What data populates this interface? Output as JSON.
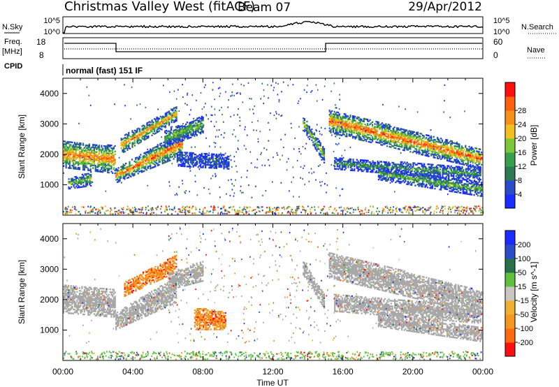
{
  "header": {
    "station": "Christmas Valley West (fitACF)",
    "beam": "Beam 07",
    "date": "29/Apr/2012"
  },
  "strips": {
    "nsky": {
      "left_label": "N.Sky",
      "left_ticks": [
        "10^5",
        "10^0"
      ],
      "right_label": "N.Search",
      "right_ticks": [
        "10^5",
        "10^0"
      ]
    },
    "freq": {
      "left_label_1": "Freq.",
      "left_label_2": "[MHz]",
      "left_ticks": [
        "18",
        "8"
      ],
      "right_label": "Nave",
      "right_ticks": [
        "60",
        "0"
      ]
    },
    "cpid": {
      "label": "CPID",
      "text": "normal (fast) 151 IF"
    }
  },
  "x_axis": {
    "label": "Time UT",
    "ticks": [
      "00:00",
      "04:00",
      "08:00",
      "12:00",
      "16:00",
      "20:00",
      "00:00"
    ],
    "range_hours": [
      0,
      24
    ]
  },
  "colors": {
    "power": [
      "#1a2cff",
      "#2a4cc8",
      "#2e7a55",
      "#38a04a",
      "#7cc838",
      "#f0c020",
      "#f89018",
      "#ff6010",
      "#ff1010"
    ],
    "velocity": [
      "#ff1010",
      "#ff6a10",
      "#f59620",
      "#f0b030",
      "#c8c8c0",
      "#60c040",
      "#2a7048",
      "#2a4cc8",
      "#1a2cff"
    ],
    "ground_scatter": "#a8a8a8"
  },
  "chart_data": [
    {
      "type": "heatmap",
      "name": "power",
      "ylabel": "Slant Range [km]",
      "yticks": [
        "1000",
        "2000",
        "3000",
        "4000"
      ],
      "ylim": [
        0,
        4500
      ],
      "colorbar": {
        "label": "Power [dB]",
        "ticks": [
          "4",
          "8",
          "12",
          "16",
          "20",
          "24",
          "28"
        ]
      },
      "bands": [
        {
          "t0": 0.0,
          "t1": 3.0,
          "r0a": 1650,
          "r1a": 2350,
          "r0b": 1450,
          "r1b": 2200,
          "peak": 0.85
        },
        {
          "t0": 0.3,
          "t1": 1.6,
          "r0a": 950,
          "r1a": 1150,
          "r0b": 1050,
          "r1b": 1350,
          "peak": 0.5
        },
        {
          "t0": 3.0,
          "t1": 6.8,
          "r0a": 1150,
          "r1a": 1450,
          "r0b": 2050,
          "r1b": 2700,
          "peak": 0.9
        },
        {
          "t0": 3.3,
          "t1": 6.5,
          "r0a": 2100,
          "r1a": 2500,
          "r0b": 3200,
          "r1b": 3500,
          "peak": 0.8
        },
        {
          "t0": 5.8,
          "t1": 8.0,
          "r0a": 2300,
          "r1a": 2700,
          "r0b": 2800,
          "r1b": 3200,
          "peak": 0.5
        },
        {
          "t0": 6.5,
          "t1": 9.5,
          "r0a": 1700,
          "r1a": 2000,
          "r0b": 1600,
          "r1b": 1900,
          "peak": 0.15
        },
        {
          "t0": 13.7,
          "t1": 14.9,
          "r0a": 2900,
          "r1a": 3200,
          "r0b": 1800,
          "r1b": 2100,
          "peak": 0.6
        },
        {
          "t0": 15.2,
          "t1": 23.9,
          "r0a": 2800,
          "r1a": 3400,
          "r0b": 1600,
          "r1b": 2100,
          "peak": 0.9
        },
        {
          "t0": 15.5,
          "t1": 23.9,
          "r0a": 1600,
          "r1a": 1800,
          "r0b": 1200,
          "r1b": 1500,
          "peak": 0.35
        },
        {
          "t0": 18.0,
          "t1": 23.9,
          "r0a": 1250,
          "r1a": 1500,
          "r0b": 700,
          "r1b": 1000,
          "peak": 0.45
        }
      ]
    },
    {
      "type": "heatmap",
      "name": "velocity",
      "ylabel": "Slant Range [km]",
      "yticks": [
        "1000",
        "2000",
        "3000",
        "4000"
      ],
      "ylim": [
        0,
        4500
      ],
      "colorbar": {
        "label": "Velocity [m s^-1]",
        "ticks": [
          "200",
          "100",
          "50",
          "15",
          "-15",
          "-50",
          "-100",
          "-200"
        ]
      },
      "bands": [
        {
          "t0": 0.0,
          "t1": 3.0,
          "r0a": 1650,
          "r1a": 2400,
          "r0b": 1500,
          "r1b": 2250,
          "class": "ground"
        },
        {
          "t0": 3.0,
          "t1": 6.5,
          "r0a": 1100,
          "r1a": 1500,
          "r0b": 2000,
          "r1b": 2700,
          "class": "ground"
        },
        {
          "t0": 3.5,
          "t1": 6.5,
          "r0a": 2200,
          "r1a": 2500,
          "r0b": 3000,
          "r1b": 3400,
          "class": "neg"
        },
        {
          "t0": 6.0,
          "t1": 8.0,
          "r0a": 2400,
          "r1a": 2800,
          "r0b": 2700,
          "r1b": 3200,
          "class": "ground"
        },
        {
          "t0": 7.5,
          "t1": 9.3,
          "r0a": 1100,
          "r1a": 1700,
          "r0b": 1100,
          "r1b": 1500,
          "class": "neg"
        },
        {
          "t0": 13.7,
          "t1": 14.9,
          "r0a": 2900,
          "r1a": 3200,
          "r0b": 1800,
          "r1b": 2100,
          "class": "ground"
        },
        {
          "t0": 15.2,
          "t1": 23.9,
          "r0a": 2800,
          "r1a": 3500,
          "r0b": 1600,
          "r1b": 2200,
          "class": "ground"
        },
        {
          "t0": 15.5,
          "t1": 23.9,
          "r0a": 1700,
          "r1a": 2100,
          "r0b": 1300,
          "r1b": 1700,
          "class": "ground"
        },
        {
          "t0": 18.0,
          "t1": 23.9,
          "r0a": 1200,
          "r1a": 1500,
          "r0b": 700,
          "r1b": 1000,
          "class": "ground"
        }
      ]
    }
  ]
}
